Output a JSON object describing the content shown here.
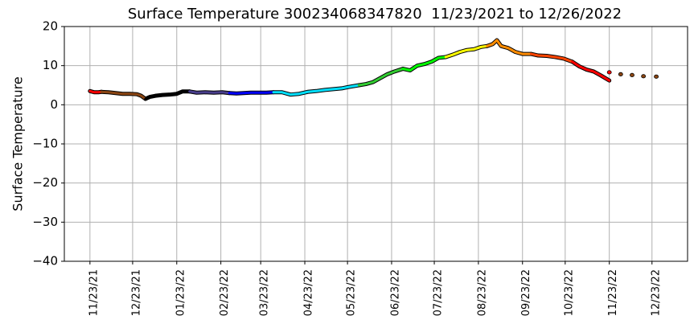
{
  "chart_data": {
    "type": "line",
    "title": "Surface Temperature 300234068347820  11/23/2021 to 12/26/2022",
    "ylabel": "Surface Temperature",
    "xlim": [
      "11/05/21",
      "01/17/23"
    ],
    "ylim": [
      -40,
      20
    ],
    "yticks": [
      {
        "value": -40,
        "label": "−40"
      },
      {
        "value": -30,
        "label": "−30"
      },
      {
        "value": -20,
        "label": "−20"
      },
      {
        "value": -10,
        "label": "−10"
      },
      0,
      10,
      20
    ],
    "xticks": [
      "11/23/21",
      "12/23/21",
      "01/23/22",
      "02/23/22",
      "03/23/22",
      "04/23/22",
      "05/23/22",
      "06/23/22",
      "07/23/22",
      "08/23/22",
      "09/23/22",
      "10/23/22",
      "11/23/22",
      "12/23/22"
    ],
    "grid": true,
    "series": [
      {
        "color": "#ff0000",
        "x": [
          "11/23/21",
          "11/26/21",
          "11/29/21",
          "12/01/21"
        ],
        "values": [
          3.5,
          3.2,
          3.2,
          3.3
        ]
      },
      {
        "color": "#8b4513",
        "x": [
          "12/01/21",
          "12/06/21",
          "12/11/21",
          "12/16/21",
          "12/21/21",
          "12/26/21",
          "12/29/21",
          "01/01/22"
        ],
        "values": [
          3.3,
          3.2,
          3.0,
          2.8,
          2.8,
          2.7,
          2.3,
          1.5
        ]
      },
      {
        "color": "#000000",
        "x": [
          "01/01/22",
          "01/04/22",
          "01/08/22",
          "01/13/22",
          "01/18/22",
          "01/23/22",
          "01/27/22",
          "02/01/22"
        ],
        "values": [
          1.5,
          2.0,
          2.3,
          2.5,
          2.6,
          2.8,
          3.4,
          3.4
        ]
      },
      {
        "color": "#483d8b",
        "x": [
          "02/01/22",
          "02/06/22",
          "02/12/22",
          "02/18/22",
          "02/24/22",
          "03/01/22"
        ],
        "values": [
          3.4,
          3.1,
          3.2,
          3.1,
          3.2,
          3.0
        ]
      },
      {
        "color": "#0000ff",
        "x": [
          "03/01/22",
          "03/06/22",
          "03/11/22",
          "03/16/22",
          "03/22/22",
          "03/27/22",
          "04/01/22"
        ],
        "values": [
          3.0,
          2.9,
          3.0,
          3.1,
          3.1,
          3.1,
          3.2
        ]
      },
      {
        "color": "#00e0ff",
        "x": [
          "04/01/22",
          "04/07/22",
          "04/13/22",
          "04/19/22",
          "04/25/22",
          "05/01/22",
          "05/07/22",
          "05/13/22",
          "05/19/22",
          "05/23/22",
          "05/31/22"
        ],
        "values": [
          3.2,
          3.2,
          2.6,
          2.8,
          3.3,
          3.5,
          3.8,
          4.0,
          4.2,
          4.5,
          5.0
        ]
      },
      {
        "color": "#32cd32",
        "x": [
          "05/31/22",
          "06/05/22",
          "06/10/22",
          "06/15/22",
          "06/20/22",
          "06/25/22",
          "07/01/22"
        ],
        "values": [
          5.0,
          5.3,
          5.8,
          6.8,
          7.8,
          8.5,
          9.2
        ]
      },
      {
        "color": "#00ff00",
        "x": [
          "07/01/22",
          "07/06/22",
          "07/11/22",
          "07/16/22",
          "07/21/22",
          "07/26/22",
          "07/31/22"
        ],
        "values": [
          9.2,
          8.8,
          10.0,
          10.4,
          11.0,
          12.0,
          12.2
        ]
      },
      {
        "color": "#ffff00",
        "x": [
          "07/31/22",
          "08/05/22",
          "08/10/22",
          "08/15/22",
          "08/20/22",
          "08/25/22",
          "08/29/22"
        ],
        "values": [
          12.2,
          12.8,
          13.5,
          14.0,
          14.2,
          14.8,
          15.0
        ]
      },
      {
        "color": "#ff8c00",
        "x": [
          "08/29/22",
          "09/02/22",
          "09/05/22",
          "09/08/22",
          "09/13/22",
          "09/18/22",
          "09/23/22",
          "09/29/22"
        ],
        "values": [
          15.0,
          15.5,
          16.5,
          15.0,
          14.5,
          13.5,
          13.0,
          13.0
        ]
      },
      {
        "color": "#ff4500",
        "x": [
          "09/29/22",
          "10/04/22",
          "10/10/22",
          "10/16/22",
          "10/22/22",
          "10/28/22"
        ],
        "values": [
          13.0,
          12.6,
          12.5,
          12.2,
          11.8,
          11.0
        ]
      },
      {
        "color": "#ff0000",
        "x": [
          "10/28/22",
          "11/02/22",
          "11/07/22",
          "11/12/22",
          "11/17/22",
          "11/23/22"
        ],
        "values": [
          11.0,
          9.8,
          9.0,
          8.5,
          7.5,
          6.2
        ]
      },
      {
        "color": "#ff0000",
        "markers": true,
        "x": [
          "11/23/22"
        ],
        "values": [
          8.3
        ]
      },
      {
        "color": "#8b4513",
        "markers": true,
        "x": [
          "12/01/22",
          "12/09/22",
          "12/17/22",
          "12/26/22"
        ],
        "values": [
          7.8,
          7.6,
          7.3,
          7.2
        ]
      }
    ]
  }
}
